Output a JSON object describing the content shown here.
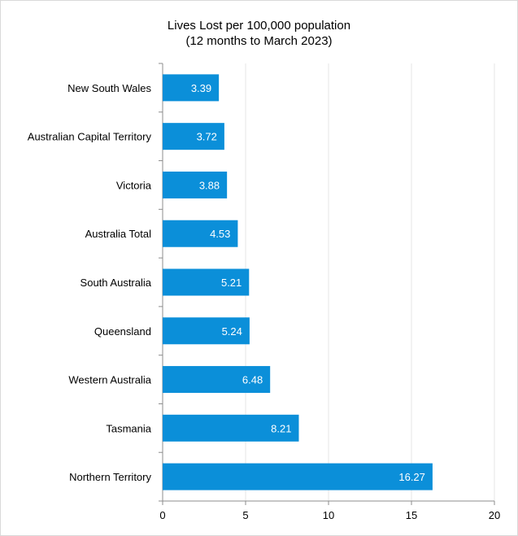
{
  "chart_data": {
    "type": "bar",
    "orientation": "horizontal",
    "title": "Lives Lost per 100,000 population",
    "subtitle": "(12 months to March 2023)",
    "categories": [
      "New South Wales",
      "Australian Capital Territory",
      "Victoria",
      "Australia Total",
      "South Australia",
      "Queensland",
      "Western Australia",
      "Tasmania",
      "Northern Territory"
    ],
    "values": [
      3.39,
      3.72,
      3.88,
      4.53,
      5.21,
      5.24,
      6.48,
      8.21,
      16.27
    ],
    "value_labels": [
      "3.39",
      "3.72",
      "3.88",
      "4.53",
      "5.21",
      "5.24",
      "6.48",
      "8.21",
      "16.27"
    ],
    "xlim": [
      0,
      20
    ],
    "x_ticks": [
      "0",
      "5",
      "10",
      "15",
      "20"
    ],
    "grid": true,
    "legend": "none",
    "bar_color": "#0b8fd9"
  }
}
